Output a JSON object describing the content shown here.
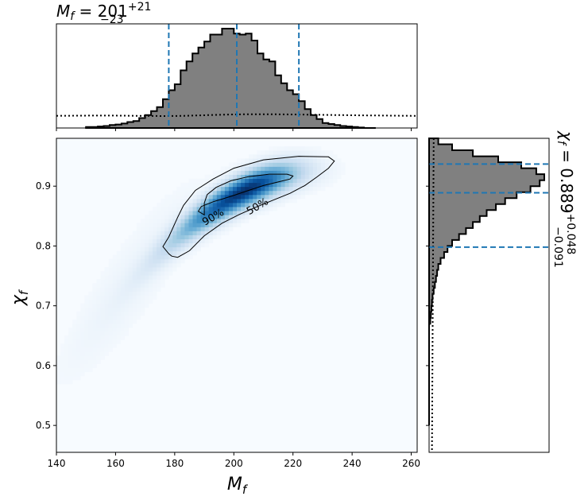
{
  "chart_data": {
    "type": "heatmap",
    "title": "M_f = 201^{+21}_{-23}",
    "title_parts": {
      "var": "M",
      "sub": "f",
      "eq": " = 201",
      "sup": "+21",
      "subscript_err": "−23"
    },
    "xlabel": "M_f",
    "xlabel_parts": {
      "var": "M",
      "sub": "f"
    },
    "ylabel": "χ_f",
    "ylabel_parts": {
      "var": "χ",
      "sub": "f"
    },
    "right_label": "χ_f = 0.889^{+0.048}_{-0.091}",
    "right_label_parts": {
      "var": "χ",
      "sub": "f",
      "eq": " = 0.889",
      "sup": "+0.048",
      "subscript_err": "−0.091"
    },
    "xlim": [
      140,
      262
    ],
    "ylim": [
      0.455,
      0.98
    ],
    "xticks": [
      140,
      160,
      180,
      200,
      220,
      240,
      260
    ],
    "yticks": [
      0.5,
      0.6,
      0.7,
      0.8,
      0.9
    ],
    "xtick_labels": [
      "140",
      "160",
      "180",
      "200",
      "220",
      "240",
      "260"
    ],
    "ytick_labels": [
      "0.5",
      "0.6",
      "0.7",
      "0.8",
      "0.9"
    ],
    "colormap": "Blues",
    "colors": {
      "hist_fill": "#808080",
      "hist_edge": "#000000",
      "quantile_line": "#1f77b4",
      "contour": "#000000"
    },
    "density": {
      "center_x": 204,
      "center_y": 0.893,
      "major_sigma_x": 13,
      "slope": 0.0024,
      "minor_sigma_y": 0.018,
      "tail": "low-mass, low-spin"
    },
    "contours": [
      {
        "label": "50%",
        "label_at": [
          208,
          0.866
        ],
        "points": [
          [
            190,
            0.852
          ],
          [
            188,
            0.858
          ],
          [
            189,
            0.866
          ],
          [
            193,
            0.874
          ],
          [
            199,
            0.883
          ],
          [
            205,
            0.893
          ],
          [
            210,
            0.901
          ],
          [
            215,
            0.907
          ],
          [
            219,
            0.912
          ],
          [
            220,
            0.917
          ],
          [
            218,
            0.92
          ],
          [
            212,
            0.92
          ],
          [
            205,
            0.916
          ],
          [
            199,
            0.909
          ],
          [
            194,
            0.898
          ],
          [
            191,
            0.886
          ],
          [
            190,
            0.872
          ]
        ]
      },
      {
        "label": "90%",
        "label_at": [
          193,
          0.848
        ],
        "points": [
          [
            178,
            0.787
          ],
          [
            179,
            0.783
          ],
          [
            181,
            0.781
          ],
          [
            185,
            0.792
          ],
          [
            190,
            0.817
          ],
          [
            196,
            0.838
          ],
          [
            202,
            0.853
          ],
          [
            208,
            0.866
          ],
          [
            213,
            0.876
          ],
          [
            219,
            0.888
          ],
          [
            224,
            0.901
          ],
          [
            228,
            0.915
          ],
          [
            232,
            0.93
          ],
          [
            234,
            0.942
          ],
          [
            232,
            0.949
          ],
          [
            222,
            0.95
          ],
          [
            210,
            0.944
          ],
          [
            200,
            0.93
          ],
          [
            193,
            0.912
          ],
          [
            187,
            0.893
          ],
          [
            183,
            0.868
          ],
          [
            181,
            0.848
          ],
          [
            178,
            0.815
          ],
          [
            176,
            0.799
          ]
        ]
      }
    ],
    "top_hist": {
      "bins": [
        150,
        152,
        154,
        156,
        158,
        160,
        162,
        164,
        166,
        168,
        170,
        172,
        174,
        176,
        178,
        180,
        182,
        184,
        186,
        188,
        190,
        192,
        194,
        196,
        198,
        200,
        202,
        204,
        206,
        208,
        210,
        212,
        214,
        216,
        218,
        220,
        222,
        224,
        226,
        228,
        230,
        232,
        234,
        236,
        238,
        240,
        242,
        244,
        246
      ],
      "density": [
        0.01,
        0.01,
        0.015,
        0.02,
        0.03,
        0.035,
        0.045,
        0.06,
        0.07,
        0.1,
        0.13,
        0.17,
        0.21,
        0.29,
        0.38,
        0.44,
        0.58,
        0.67,
        0.75,
        0.81,
        0.87,
        0.94,
        0.94,
        1.0,
        1.0,
        0.95,
        0.94,
        0.95,
        0.88,
        0.75,
        0.69,
        0.67,
        0.53,
        0.45,
        0.38,
        0.34,
        0.27,
        0.19,
        0.13,
        0.09,
        0.05,
        0.04,
        0.03,
        0.02,
        0.015,
        0.01,
        0.005,
        0.0
      ],
      "prior_density": 0.12,
      "quantiles": [
        178,
        201,
        222
      ]
    },
    "right_hist": {
      "bins": [
        0.5,
        0.51,
        0.52,
        0.53,
        0.54,
        0.55,
        0.56,
        0.57,
        0.58,
        0.59,
        0.6,
        0.61,
        0.62,
        0.63,
        0.64,
        0.65,
        0.66,
        0.67,
        0.68,
        0.69,
        0.7,
        0.71,
        0.72,
        0.73,
        0.74,
        0.75,
        0.76,
        0.77,
        0.78,
        0.79,
        0.8,
        0.81,
        0.82,
        0.83,
        0.84,
        0.85,
        0.86,
        0.87,
        0.88,
        0.89,
        0.9,
        0.91,
        0.92,
        0.93,
        0.94,
        0.95,
        0.96,
        0.97
      ],
      "density": [
        0.0,
        0.0,
        0.0,
        0.0,
        0.0,
        0.0,
        0.0,
        0.0,
        0.0,
        0.0,
        0.0,
        0.0,
        0.0,
        0.0,
        0.0,
        0.0,
        0.0,
        0.01,
        0.015,
        0.02,
        0.025,
        0.03,
        0.04,
        0.05,
        0.06,
        0.07,
        0.08,
        0.1,
        0.13,
        0.16,
        0.2,
        0.26,
        0.32,
        0.38,
        0.44,
        0.5,
        0.58,
        0.66,
        0.76,
        0.88,
        0.96,
        1.0,
        0.93,
        0.8,
        0.6,
        0.38,
        0.2,
        0.08
      ],
      "prior_density": 0.03,
      "quantiles": [
        0.798,
        0.889,
        0.937
      ]
    }
  }
}
